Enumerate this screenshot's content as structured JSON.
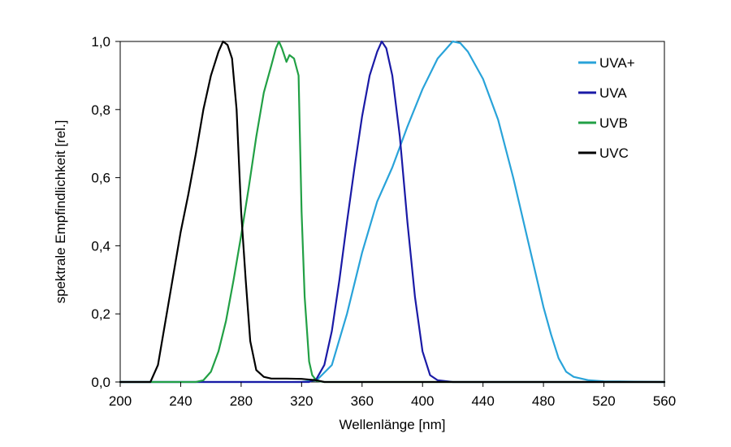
{
  "chart_data": {
    "type": "line",
    "xlabel": "Wellenlänge [nm]",
    "ylabel": "spektrale Empfindlichkeit [rel.]",
    "xlim": [
      200,
      560
    ],
    "ylim": [
      0,
      1
    ],
    "x_ticks": [
      200,
      240,
      280,
      320,
      360,
      400,
      440,
      480,
      520,
      560
    ],
    "x_tick_labels": [
      "200",
      "240",
      "280",
      "320",
      "360",
      "400",
      "440",
      "480",
      "520",
      "560"
    ],
    "y_ticks": [
      0,
      0.2,
      0.4,
      0.6,
      0.8,
      1.0
    ],
    "y_tick_labels": [
      "0,0",
      "0,2",
      "0,4",
      "0,6",
      "0,8",
      "1,0"
    ],
    "grid": false,
    "legend_position": "top-right",
    "series": [
      {
        "name": "UVA+",
        "color": "#29a3d9",
        "points": [
          [
            200,
            0
          ],
          [
            320,
            0
          ],
          [
            330,
            0.005
          ],
          [
            340,
            0.05
          ],
          [
            350,
            0.2
          ],
          [
            360,
            0.38
          ],
          [
            370,
            0.53
          ],
          [
            380,
            0.63
          ],
          [
            390,
            0.75
          ],
          [
            400,
            0.86
          ],
          [
            410,
            0.95
          ],
          [
            420,
            1.0
          ],
          [
            425,
            0.995
          ],
          [
            430,
            0.97
          ],
          [
            440,
            0.89
          ],
          [
            450,
            0.77
          ],
          [
            460,
            0.6
          ],
          [
            470,
            0.41
          ],
          [
            480,
            0.22
          ],
          [
            485,
            0.14
          ],
          [
            490,
            0.07
          ],
          [
            495,
            0.03
          ],
          [
            500,
            0.015
          ],
          [
            510,
            0.005
          ],
          [
            520,
            0.002
          ],
          [
            540,
            0.001
          ],
          [
            560,
            0
          ]
        ]
      },
      {
        "name": "UVA",
        "color": "#1a1aa6",
        "points": [
          [
            200,
            0
          ],
          [
            325,
            0
          ],
          [
            330,
            0.01
          ],
          [
            335,
            0.05
          ],
          [
            340,
            0.15
          ],
          [
            345,
            0.3
          ],
          [
            350,
            0.47
          ],
          [
            355,
            0.63
          ],
          [
            360,
            0.78
          ],
          [
            365,
            0.9
          ],
          [
            370,
            0.97
          ],
          [
            373,
            1.0
          ],
          [
            376,
            0.98
          ],
          [
            380,
            0.9
          ],
          [
            385,
            0.72
          ],
          [
            390,
            0.47
          ],
          [
            395,
            0.25
          ],
          [
            400,
            0.09
          ],
          [
            405,
            0.02
          ],
          [
            410,
            0.005
          ],
          [
            420,
            0
          ],
          [
            560,
            0
          ]
        ]
      },
      {
        "name": "UVB",
        "color": "#22a045",
        "points": [
          [
            200,
            0
          ],
          [
            250,
            0
          ],
          [
            255,
            0.005
          ],
          [
            260,
            0.03
          ],
          [
            265,
            0.09
          ],
          [
            270,
            0.18
          ],
          [
            275,
            0.3
          ],
          [
            280,
            0.43
          ],
          [
            285,
            0.57
          ],
          [
            290,
            0.72
          ],
          [
            295,
            0.85
          ],
          [
            300,
            0.93
          ],
          [
            303,
            0.98
          ],
          [
            305,
            1.0
          ],
          [
            307,
            0.98
          ],
          [
            310,
            0.94
          ],
          [
            312,
            0.96
          ],
          [
            315,
            0.95
          ],
          [
            318,
            0.9
          ],
          [
            320,
            0.5
          ],
          [
            322,
            0.25
          ],
          [
            325,
            0.06
          ],
          [
            327,
            0.02
          ],
          [
            330,
            0.003
          ],
          [
            335,
            0
          ],
          [
            560,
            0
          ]
        ]
      },
      {
        "name": "UVC",
        "color": "#000000",
        "points": [
          [
            200,
            0
          ],
          [
            220,
            0
          ],
          [
            225,
            0.05
          ],
          [
            230,
            0.18
          ],
          [
            235,
            0.31
          ],
          [
            240,
            0.44
          ],
          [
            245,
            0.55
          ],
          [
            250,
            0.67
          ],
          [
            255,
            0.8
          ],
          [
            260,
            0.9
          ],
          [
            265,
            0.97
          ],
          [
            268,
            1.0
          ],
          [
            271,
            0.99
          ],
          [
            274,
            0.95
          ],
          [
            277,
            0.8
          ],
          [
            280,
            0.5
          ],
          [
            283,
            0.3
          ],
          [
            286,
            0.12
          ],
          [
            290,
            0.035
          ],
          [
            295,
            0.015
          ],
          [
            300,
            0.01
          ],
          [
            310,
            0.01
          ],
          [
            320,
            0.009
          ],
          [
            330,
            0.005
          ],
          [
            335,
            0
          ],
          [
            560,
            0
          ]
        ]
      }
    ]
  }
}
